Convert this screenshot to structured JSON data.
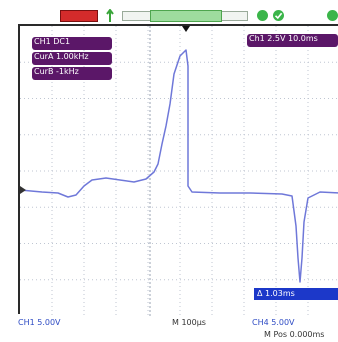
{
  "top_bar": {
    "run_indicator_color": "#d42b2b",
    "trigger_icon": "trigger-icon",
    "memory_window_color": "#9edc9e",
    "status_icons": [
      "circle-status-icon",
      "check-status-icon"
    ]
  },
  "overlays": {
    "ch_info_1": "CH1 DC1",
    "ch_info_2": "CurA 1.00kHz",
    "ch_info_3": "CurB -1kHz",
    "top_right_readout": "Ch1 2.5V 10.0ms",
    "cursor_readout": "Δ 1.03ms"
  },
  "bottom_bar": {
    "ch1_scale": "CH1 5.00V",
    "timebase": "M 100μs",
    "ch4_scale": "CH4 5.00V",
    "time_offset": "M Pos 0.000ms"
  },
  "colors": {
    "trace": "#6f78d9",
    "grid": "#bfc6d2",
    "overlay": "#5b1768",
    "cursor": "#1c38c9"
  }
}
